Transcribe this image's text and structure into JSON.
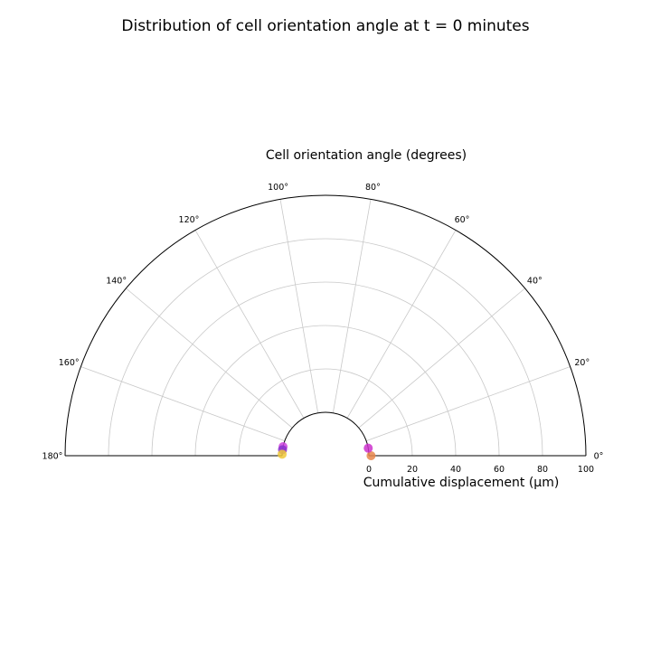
{
  "chart_data": {
    "type": "scatter",
    "projection": "polar-half",
    "title": "Distribution of cell orientation angle at t = 0 minutes",
    "theta_label": "Cell orientation angle (degrees)",
    "r_label": "Cumulative displacement (μm)",
    "theta_range": [
      0,
      180
    ],
    "r_range": [
      0,
      100
    ],
    "theta_ticks": [
      "0°",
      "20°",
      "40°",
      "60°",
      "80°",
      "100°",
      "120°",
      "140°",
      "160°",
      "180°"
    ],
    "r_ticks": [
      "0",
      "20",
      "40",
      "60",
      "80",
      "100"
    ],
    "grid": true,
    "points": [
      {
        "theta": 0,
        "r": 1,
        "color": "#e8874b"
      },
      {
        "theta": 10,
        "r": 0,
        "color": "#cc33cc"
      },
      {
        "theta": 168,
        "r": 0,
        "color": "#cc44dd"
      },
      {
        "theta": 172,
        "r": 0,
        "color": "#8833cc"
      },
      {
        "theta": 178,
        "r": 0,
        "color": "#f0c93a"
      }
    ]
  }
}
